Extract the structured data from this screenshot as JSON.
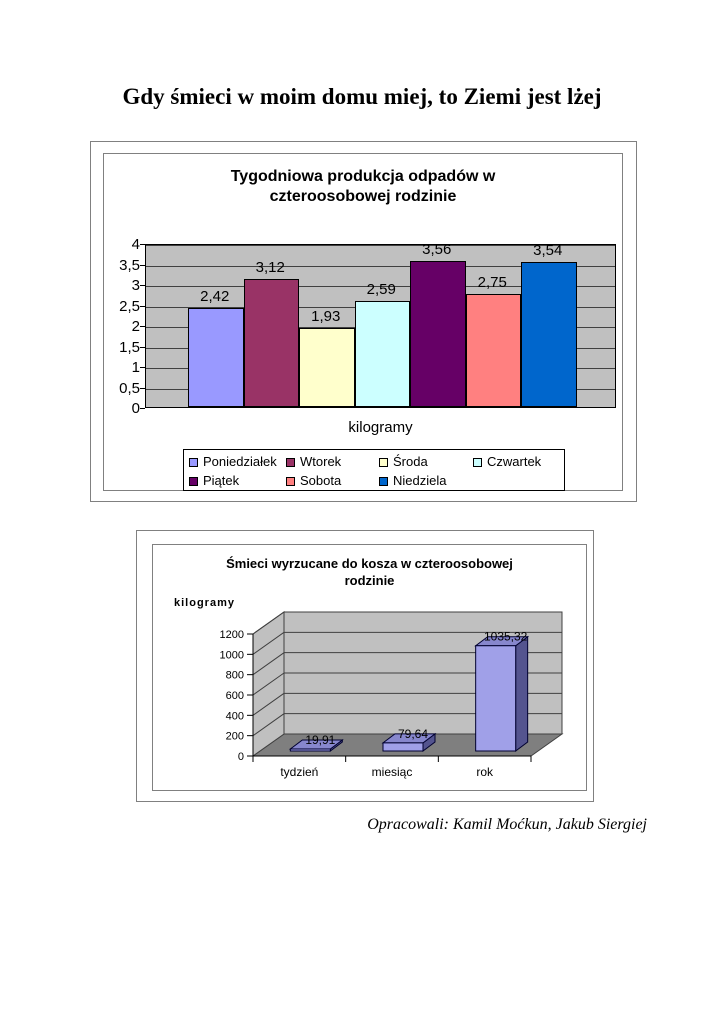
{
  "page": {
    "title": "Gdy śmieci w moim domu miej, to Ziemi jest lżej",
    "footer": "Opracowali: Kamil Moćkun, Jakub Siergiej"
  },
  "chart_data": [
    {
      "type": "bar",
      "title": "Tygodniowa produkcja odpadów w czteroosobowej rodzinie",
      "title_lines": [
        "Tygodniowa produkcja odpadów w",
        "czteroosobowej rodzinie"
      ],
      "xlabel": "kilogramy",
      "ylim": [
        0,
        4
      ],
      "ytick_step": 0.5,
      "ytick_labels": [
        "0",
        "0,5",
        "1",
        "1,5",
        "2",
        "2,5",
        "3",
        "3,5",
        "4"
      ],
      "grid": true,
      "plot_bg": "#C0C0C0",
      "legend_position": "bottom",
      "series": [
        {
          "name": "Poniedziałek",
          "value": 2.42,
          "label": "2,42",
          "color": "#9999FF"
        },
        {
          "name": "Wtorek",
          "value": 3.12,
          "label": "3,12",
          "color": "#993366"
        },
        {
          "name": "Środa",
          "value": 1.93,
          "label": "1,93",
          "color": "#FFFFCC"
        },
        {
          "name": "Czwartek",
          "value": 2.59,
          "label": "2,59",
          "color": "#CCFFFF"
        },
        {
          "name": "Piątek",
          "value": 3.56,
          "label": "3,56",
          "color": "#660066"
        },
        {
          "name": "Sobota",
          "value": 2.75,
          "label": "2,75",
          "color": "#FF8080"
        },
        {
          "name": "Niedziela",
          "value": 3.54,
          "label": "3,54",
          "color": "#0066CC"
        }
      ]
    },
    {
      "type": "bar",
      "style": "3d",
      "title": "Śmieci wyrzucane do kosza w czteroosobowej rodzinie",
      "title_lines": [
        "Śmieci wyrzucane do kosza w czteroosobowej",
        "rodzinie"
      ],
      "ylabel": "kilogramy",
      "ylim": [
        0,
        1200
      ],
      "ytick_step": 200,
      "ytick_labels": [
        "0",
        "200",
        "400",
        "600",
        "800",
        "1000",
        "1200"
      ],
      "grid": true,
      "categories": [
        "tydzień",
        "miesiąc",
        "rok"
      ],
      "values": [
        19.91,
        79.64,
        1035.32
      ],
      "value_labels": [
        "19,91",
        "79,64",
        "1035,32"
      ],
      "colors": {
        "bar_front": "#A0A0E8",
        "bar_top": "#8787CD",
        "bar_side": "#54548F",
        "bar_outline": "#000030",
        "wall": "#C0C0C0",
        "floor": "#7F7F7F",
        "grid_line": "#404040"
      }
    }
  ]
}
